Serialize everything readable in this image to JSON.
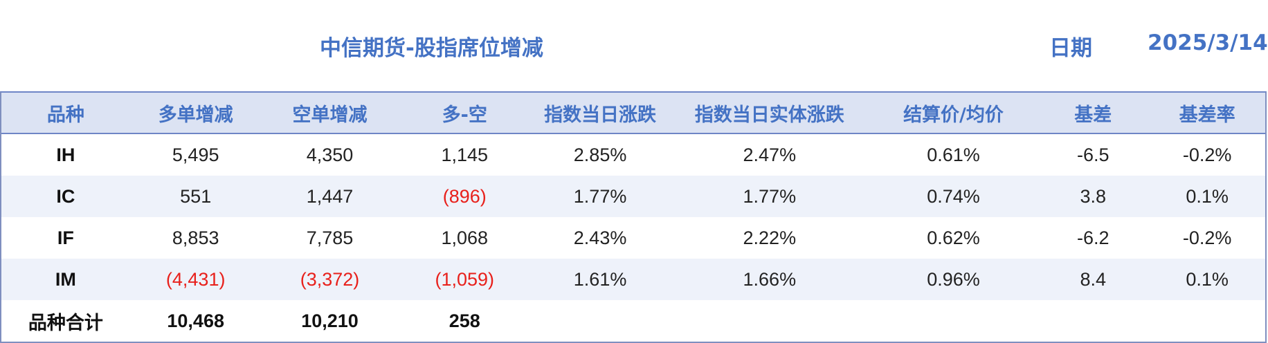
{
  "title": "中信期货-股指席位增减",
  "date_label": "日期",
  "date_value": "2025/3/14",
  "colors": {
    "accent": "#4472C4",
    "header_bg": "#DCE3F3",
    "alt_row_bg": "#EEF2FA",
    "negative": "#E8201B"
  },
  "table": {
    "headers": [
      "品种",
      "多单增减",
      "空单增减",
      "多-空",
      "指数当日涨跌",
      "指数当日实体涨跌",
      "结算价/均价",
      "基差",
      "基差率"
    ],
    "rows": [
      {
        "cells": [
          "IH",
          "5,495",
          "4,350",
          "1,145",
          "2.85%",
          "2.47%",
          "0.61%",
          "-6.5",
          "-0.2%"
        ],
        "negative": []
      },
      {
        "cells": [
          "IC",
          "551",
          "1,447",
          "(896)",
          "1.77%",
          "1.77%",
          "0.74%",
          "3.8",
          "0.1%"
        ],
        "negative": [
          3
        ]
      },
      {
        "cells": [
          "IF",
          "8,853",
          "7,785",
          "1,068",
          "2.43%",
          "2.22%",
          "0.62%",
          "-6.2",
          "-0.2%"
        ],
        "negative": []
      },
      {
        "cells": [
          "IM",
          "(4,431)",
          "(3,372)",
          "(1,059)",
          "1.61%",
          "1.66%",
          "0.96%",
          "8.4",
          "0.1%"
        ],
        "negative": [
          1,
          2,
          3
        ]
      }
    ],
    "total": [
      "品种合计",
      "10,468",
      "10,210",
      "258",
      "",
      "",
      "",
      "",
      ""
    ]
  }
}
